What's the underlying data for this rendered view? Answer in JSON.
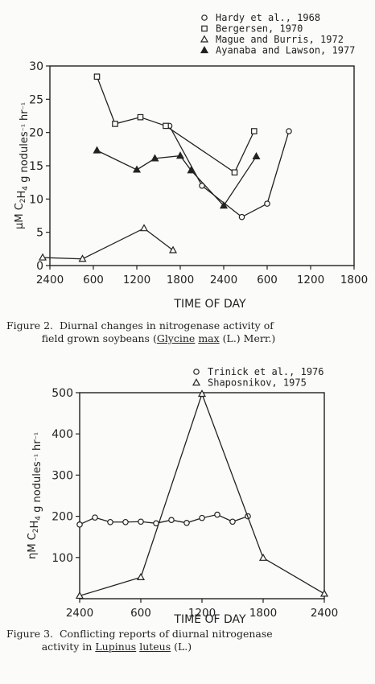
{
  "chart_data": [
    {
      "type": "line",
      "ylabel": "μM C2H4 g nodules⁻¹ hr⁻¹",
      "xlabel": "TIME OF DAY",
      "x_ticks": [
        "2400",
        "600",
        "1200",
        "1800",
        "2400",
        "600",
        "1200",
        "1800"
      ],
      "y_ticks": [
        "0",
        "5",
        "10",
        "15",
        "20",
        "25",
        "30"
      ],
      "ylim": [
        0,
        30
      ],
      "xlim": [
        0,
        42
      ],
      "grid": false,
      "legend_position": "top-right",
      "series": [
        {
          "name": "Hardy et al., 1968",
          "marker": "circle",
          "points": [
            [
              16.5,
              21
            ],
            [
              21,
              12
            ],
            [
              26.5,
              7.3
            ],
            [
              30,
              9.3
            ],
            [
              33,
              20.2
            ]
          ]
        },
        {
          "name": "Bergersen, 1970",
          "marker": "square",
          "points": [
            [
              6.5,
              28.4
            ],
            [
              9,
              21.3
            ],
            [
              12.5,
              22.3
            ],
            [
              16,
              21
            ],
            [
              25.5,
              14
            ],
            [
              28.2,
              20.2
            ]
          ]
        },
        {
          "name": "Mague and Burris, 1972",
          "marker": "open-triangle",
          "points": [
            [
              -1,
              1.2
            ],
            [
              4.5,
              1
            ],
            [
              13,
              5.6
            ],
            [
              17,
              2.3
            ]
          ]
        },
        {
          "name": "Ayanaba and Lawson, 1977",
          "marker": "filled-triangle",
          "points": [
            [
              6.5,
              17.3
            ],
            [
              12,
              14.4
            ],
            [
              14.5,
              16.1
            ],
            [
              18,
              16.5
            ],
            [
              19.5,
              14.3
            ],
            [
              24,
              9
            ],
            [
              28.5,
              16.4
            ]
          ]
        }
      ]
    },
    {
      "type": "line",
      "ylabel": "ηM C2H4 g nodules⁻¹ hr⁻¹",
      "xlabel": "TIME OF DAY",
      "x_ticks": [
        "2400",
        "600",
        "1200",
        "1800",
        "2400"
      ],
      "y_ticks": [
        "100",
        "200",
        "300",
        "400",
        "500"
      ],
      "ylim": [
        0,
        500
      ],
      "xlim": [
        0,
        24
      ],
      "grid": false,
      "legend_position": "top-right",
      "series": [
        {
          "name": "Trinick et al., 1976",
          "marker": "circle",
          "points": [
            [
              0,
              180
            ],
            [
              1.5,
              197
            ],
            [
              3,
              186
            ],
            [
              4.5,
              186
            ],
            [
              6,
              187
            ],
            [
              7.5,
              183
            ],
            [
              9,
              191
            ],
            [
              10.5,
              184
            ],
            [
              12,
              196
            ],
            [
              13.5,
              204
            ],
            [
              15,
              187
            ],
            [
              16.5,
              200
            ]
          ]
        },
        {
          "name": "Shaposnikov, 1975",
          "marker": "open-triangle",
          "points": [
            [
              0,
              7
            ],
            [
              6,
              52
            ],
            [
              12,
              497
            ],
            [
              18,
              99
            ],
            [
              24,
              12
            ]
          ]
        }
      ]
    }
  ],
  "captions": {
    "fig2_label": "Figure 2.",
    "fig2_line1": "Diurnal changes in nitrogenase activity of",
    "fig2_line2_pre": "field grown soybeans (",
    "fig2_genus": "Glycine",
    "fig2_species": "max",
    "fig2_line2_post": " (L.) Merr.)",
    "fig3_label": "Figure 3.",
    "fig3_line1": "Conflicting reports of diurnal nitrogenase",
    "fig3_line2_pre": "activity in ",
    "fig3_genus": "Lupinus",
    "fig3_species": "luteus",
    "fig3_line2_post": " (L.)"
  }
}
